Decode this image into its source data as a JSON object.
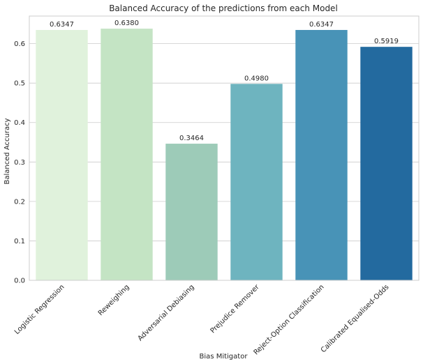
{
  "chart_data": {
    "type": "bar",
    "title": "Balanced Accuracy of the predictions from each Model",
    "xlabel": "Bias Mitigator",
    "ylabel": "Balanced Accuracy",
    "ylim": [
      0,
      0.67
    ],
    "yticks": [
      "0.0",
      "0.1",
      "0.2",
      "0.3",
      "0.4",
      "0.5",
      "0.6"
    ],
    "ytick_values": [
      0,
      0.1,
      0.2,
      0.3,
      0.4,
      0.5,
      0.6
    ],
    "grid": true,
    "categories": [
      "Logistic Regression",
      "Reweighing",
      "Adversarial Debiasing",
      "Prejudice Remover",
      "Reject-Option Classification",
      "Calibrated Equalised-Odds"
    ],
    "values": [
      0.6347,
      0.638,
      0.3464,
      0.498,
      0.6347,
      0.5919
    ],
    "value_labels": [
      "0.6347",
      "0.6380",
      "0.3464",
      "0.4980",
      "0.6347",
      "0.5919"
    ],
    "colors": [
      "#e0f2dc",
      "#c4e4c4",
      "#9dcbb8",
      "#6eb4bf",
      "#4893b7",
      "#236a9f"
    ]
  }
}
